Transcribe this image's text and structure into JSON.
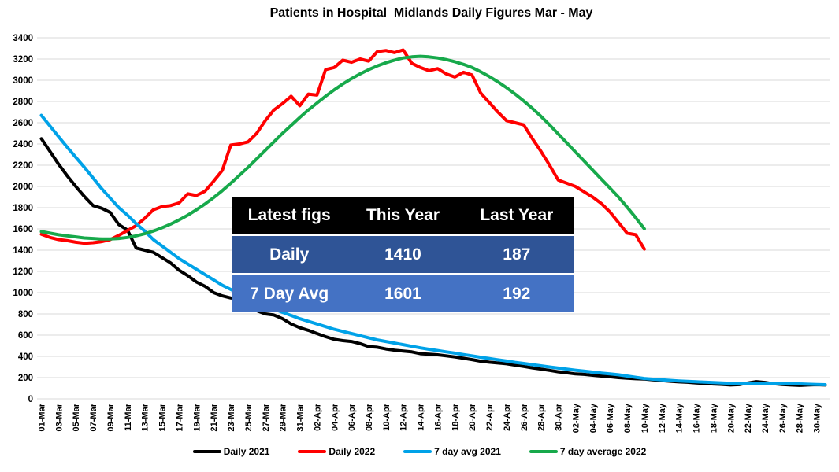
{
  "title": "Patients in Hospital  Midlands Daily Figures Mar - May",
  "table": {
    "headers": [
      "Latest figs",
      "This Year",
      "Last Year"
    ],
    "rows": [
      {
        "label": "Daily",
        "this_year": "1410",
        "last_year": "187"
      },
      {
        "label": "7 Day Avg",
        "this_year": "1601",
        "last_year": "192"
      }
    ],
    "header_bg": "#000000",
    "row_colors": [
      "#2F5496",
      "#4472C4"
    ]
  },
  "chart_data": {
    "type": "line",
    "title": "Patients in Hospital  Midlands Daily Figures Mar - May",
    "xlabel": "",
    "ylabel": "",
    "ylim": [
      0,
      3400
    ],
    "ytick_step": 200,
    "grid": true,
    "gridline_color": "#D9D9D9",
    "legend_position": "bottom",
    "x_labels": [
      "01-Mar",
      "03-Mar",
      "05-Mar",
      "07-Mar",
      "09-Mar",
      "11-Mar",
      "13-Mar",
      "15-Mar",
      "17-Mar",
      "19-Mar",
      "21-Mar",
      "23-Mar",
      "25-Mar",
      "27-Mar",
      "29-Mar",
      "31-Mar",
      "02-Apr",
      "04-Apr",
      "06-Apr",
      "08-Apr",
      "10-Apr",
      "12-Apr",
      "14-Apr",
      "16-Apr",
      "18-Apr",
      "20-Apr",
      "22-Apr",
      "24-Apr",
      "26-Apr",
      "28-Apr",
      "30-Apr",
      "02-May",
      "04-May",
      "06-May",
      "08-May",
      "10-May",
      "12-May",
      "14-May",
      "16-May",
      "18-May",
      "20-May",
      "22-May",
      "24-May",
      "26-May",
      "28-May",
      "30-May"
    ],
    "x_label_every_n_days": 2,
    "series": [
      {
        "name": "Daily 2021",
        "color": "#000000",
        "values": [
          2450,
          2330,
          2210,
          2100,
          2000,
          1905,
          1820,
          1795,
          1755,
          1640,
          1590,
          1420,
          1400,
          1380,
          1330,
          1280,
          1210,
          1160,
          1100,
          1060,
          1000,
          970,
          950,
          940,
          870,
          830,
          800,
          790,
          755,
          705,
          670,
          645,
          615,
          585,
          560,
          548,
          540,
          520,
          492,
          486,
          470,
          458,
          450,
          442,
          425,
          420,
          415,
          405,
          395,
          382,
          370,
          355,
          345,
          338,
          330,
          318,
          305,
          292,
          280,
          268,
          255,
          245,
          235,
          230,
          222,
          215,
          208,
          200,
          195,
          190,
          187,
          180,
          172,
          166,
          160,
          156,
          150,
          145,
          140,
          136,
          130,
          134,
          150,
          162,
          155,
          142,
          135,
          130,
          127,
          130,
          133,
          130
        ]
      },
      {
        "name": "Daily 2022",
        "color": "#FF0000",
        "values": [
          1550,
          1520,
          1500,
          1490,
          1475,
          1465,
          1470,
          1480,
          1500,
          1540,
          1585,
          1630,
          1700,
          1780,
          1810,
          1820,
          1845,
          1930,
          1915,
          1955,
          2050,
          2150,
          2390,
          2400,
          2420,
          2500,
          2620,
          2720,
          2780,
          2850,
          2760,
          2870,
          2860,
          3100,
          3120,
          3190,
          3170,
          3200,
          3180,
          3270,
          3280,
          3260,
          3285,
          3160,
          3120,
          3090,
          3110,
          3060,
          3030,
          3075,
          3050,
          2880,
          2790,
          2700,
          2620,
          2600,
          2580,
          2450,
          2330,
          2200,
          2060,
          2030,
          2000,
          1950,
          1900,
          1840,
          1760,
          1660,
          1560,
          1545,
          1410
        ]
      },
      {
        "name": "7 day avg 2021",
        "color": "#00A2E8",
        "values": [
          2670,
          2570,
          2470,
          2370,
          2275,
          2180,
          2080,
          1980,
          1890,
          1800,
          1730,
          1650,
          1580,
          1500,
          1440,
          1380,
          1320,
          1270,
          1220,
          1170,
          1120,
          1070,
          1030,
          990,
          950,
          915,
          880,
          845,
          815,
          785,
          755,
          730,
          705,
          680,
          655,
          635,
          615,
          595,
          575,
          555,
          540,
          525,
          510,
          495,
          480,
          467,
          455,
          442,
          430,
          417,
          405,
          392,
          380,
          368,
          356,
          344,
          333,
          322,
          311,
          300,
          290,
          280,
          270,
          261,
          252,
          243,
          235,
          227,
          215,
          203,
          192,
          185,
          179,
          174,
          169,
          165,
          161,
          157,
          153,
          150,
          147,
          145,
          144,
          144,
          145,
          146,
          146,
          144,
          141,
          138,
          135,
          133
        ]
      },
      {
        "name": "7 day average 2022",
        "color": "#17A94B",
        "values": [
          1575,
          1560,
          1545,
          1535,
          1525,
          1515,
          1510,
          1505,
          1505,
          1510,
          1520,
          1535,
          1555,
          1580,
          1610,
          1645,
          1685,
          1730,
          1780,
          1835,
          1895,
          1960,
          2030,
          2105,
          2180,
          2260,
          2340,
          2420,
          2500,
          2575,
          2650,
          2720,
          2785,
          2850,
          2910,
          2965,
          3015,
          3060,
          3100,
          3135,
          3165,
          3190,
          3210,
          3220,
          3225,
          3220,
          3210,
          3195,
          3175,
          3150,
          3120,
          3080,
          3035,
          2985,
          2930,
          2870,
          2805,
          2735,
          2660,
          2580,
          2495,
          2410,
          2325,
          2240,
          2155,
          2070,
          1985,
          1900,
          1805,
          1705,
          1601
        ]
      }
    ]
  }
}
